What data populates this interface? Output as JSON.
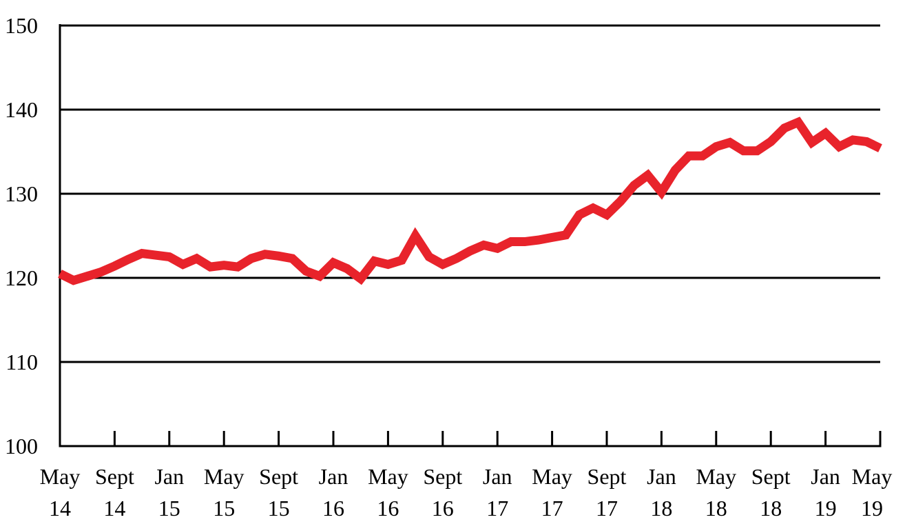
{
  "chart_data": {
    "type": "line",
    "title": "",
    "xlabel": "",
    "ylabel": "",
    "ylim": [
      100,
      150
    ],
    "yticks": [
      100,
      110,
      120,
      130,
      140,
      150
    ],
    "grid": "horizontal",
    "legend": "none",
    "line_color": "#e8232b",
    "xticks": [
      {
        "month": 0,
        "line1": "May",
        "line2": "14"
      },
      {
        "month": 4,
        "line1": "Sept",
        "line2": "14"
      },
      {
        "month": 8,
        "line1": "Jan",
        "line2": "15"
      },
      {
        "month": 12,
        "line1": "May",
        "line2": "15"
      },
      {
        "month": 16,
        "line1": "Sept",
        "line2": "15"
      },
      {
        "month": 20,
        "line1": "Jan",
        "line2": "16"
      },
      {
        "month": 24,
        "line1": "May",
        "line2": "16"
      },
      {
        "month": 28,
        "line1": "Sept",
        "line2": "16"
      },
      {
        "month": 32,
        "line1": "Jan",
        "line2": "17"
      },
      {
        "month": 36,
        "line1": "May",
        "line2": "17"
      },
      {
        "month": 40,
        "line1": "Sept",
        "line2": "17"
      },
      {
        "month": 44,
        "line1": "Jan",
        "line2": "18"
      },
      {
        "month": 48,
        "line1": "May",
        "line2": "18"
      },
      {
        "month": 52,
        "line1": "Sept",
        "line2": "18"
      },
      {
        "month": 56,
        "line1": "Jan",
        "line2": "19"
      },
      {
        "month": 60,
        "line1": "May",
        "line2": "19"
      }
    ],
    "series": [
      {
        "values": [
          120.5,
          119.7,
          120.2,
          120.7,
          121.4,
          122.2,
          122.9,
          122.7,
          122.5,
          121.6,
          122.3,
          121.3,
          121.5,
          121.3,
          122.3,
          122.8,
          122.6,
          122.3,
          120.8,
          120.2,
          121.8,
          121.1,
          119.9,
          122.0,
          121.6,
          122.1,
          125.0,
          122.5,
          121.6,
          122.3,
          123.2,
          123.9,
          123.5,
          124.3,
          124.3,
          124.5,
          124.8,
          125.1,
          127.5,
          128.3,
          127.5,
          129.1,
          131.0,
          132.2,
          130.2,
          132.8,
          134.5,
          134.5,
          135.6,
          136.1,
          135.1,
          135.1,
          136.2,
          137.8,
          138.5,
          136.1,
          137.2,
          135.6,
          136.4,
          136.2,
          135.4
        ]
      }
    ]
  }
}
